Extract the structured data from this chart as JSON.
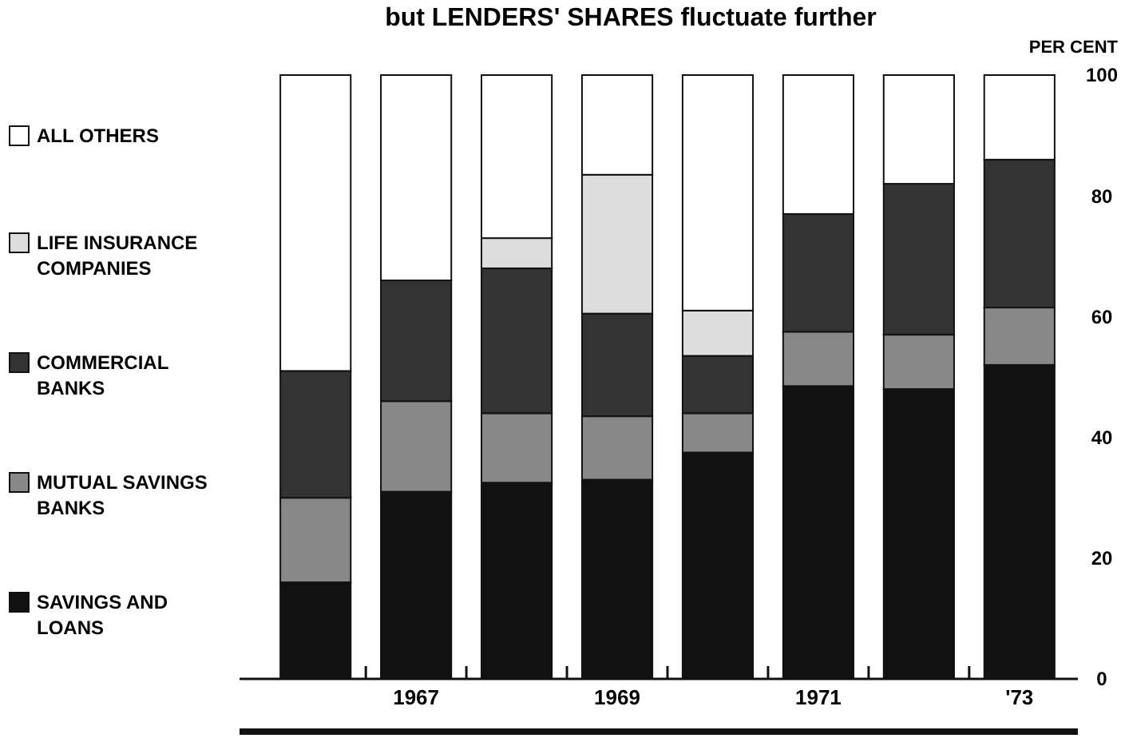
{
  "chart_data": {
    "type": "bar",
    "stacked": true,
    "title": "but LENDERS' SHARES fluctuate further",
    "ylabel": "PER CENT",
    "categories": [
      null,
      "1967",
      null,
      "1969",
      null,
      "1971",
      null,
      "'73"
    ],
    "series": [
      {
        "name": "SAVINGS AND LOANS",
        "color": "#111111",
        "values": [
          16,
          31,
          32.5,
          33,
          37.5,
          48.5,
          48,
          52
        ]
      },
      {
        "name": "MUTUAL SAVINGS BANKS",
        "color": "#888888",
        "values": [
          14,
          15,
          11.5,
          10.5,
          6.5,
          9,
          9,
          9.5
        ]
      },
      {
        "name": "COMMERCIAL BANKS",
        "color": "#333333",
        "values": [
          21,
          20,
          24,
          17,
          9.5,
          19.5,
          25,
          24.5
        ]
      },
      {
        "name": "LIFE INSURANCE COMPANIES",
        "color": "#dddddd",
        "values": [
          0,
          0,
          5,
          23,
          7.5,
          0,
          0,
          0
        ]
      },
      {
        "name": "ALL OTHERS",
        "color": "#ffffff",
        "values": [
          49,
          34,
          27,
          16.5,
          39,
          23,
          18,
          14
        ]
      }
    ],
    "ylim": [
      0,
      100
    ],
    "yticks": [
      0,
      20,
      40,
      60,
      80,
      100
    ],
    "legend": "left"
  }
}
